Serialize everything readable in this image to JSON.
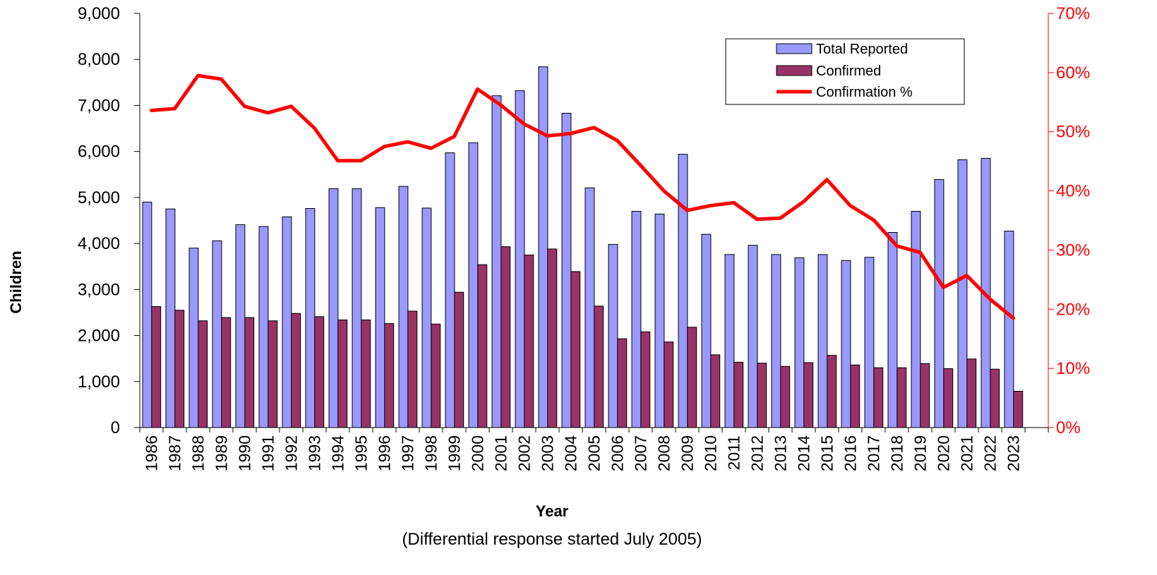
{
  "chart_data": {
    "type": "bar",
    "categories": [
      "1986",
      "1987",
      "1988",
      "1989",
      "1990",
      "1991",
      "1992",
      "1993",
      "1994",
      "1995",
      "1996",
      "1997",
      "1998",
      "1999",
      "2000",
      "2001",
      "2002",
      "2003",
      "2004",
      "2005",
      "2006",
      "2007",
      "2008",
      "2009",
      "2010",
      "2011",
      "2012",
      "2013",
      "2014",
      "2015",
      "2016",
      "2017",
      "2018",
      "2019",
      "2020",
      "2021",
      "2022",
      "2023"
    ],
    "series": [
      {
        "name": "Total Reported",
        "type": "bar",
        "axis": "left",
        "color": "#9999ff",
        "values": [
          4900,
          4750,
          3900,
          4060,
          4410,
          4370,
          4580,
          4760,
          5190,
          5190,
          4780,
          5240,
          4770,
          5970,
          6190,
          7210,
          7320,
          7840,
          6830,
          5210,
          3980,
          4700,
          4640,
          5940,
          4200,
          3760,
          3960,
          3760,
          3690,
          3760,
          3630,
          3700,
          4240,
          4700,
          5390,
          5820,
          5850,
          4270
        ]
      },
      {
        "name": "Confirmed",
        "type": "bar",
        "axis": "left",
        "color": "#993366",
        "values": [
          2630,
          2550,
          2320,
          2390,
          2390,
          2320,
          2480,
          2410,
          2340,
          2340,
          2260,
          2530,
          2250,
          2940,
          3540,
          3930,
          3750,
          3880,
          3390,
          2640,
          1930,
          2080,
          1860,
          2180,
          1580,
          1420,
          1400,
          1330,
          1410,
          1570,
          1360,
          1300,
          1300,
          1390,
          1280,
          1490,
          1270,
          790
        ]
      },
      {
        "name": "Confirmation %",
        "type": "line",
        "axis": "right",
        "color": "#ff0000",
        "values": [
          53.6,
          53.9,
          59.5,
          58.9,
          54.3,
          53.2,
          54.3,
          50.6,
          45.1,
          45.1,
          47.5,
          48.3,
          47.2,
          49.2,
          57.2,
          54.5,
          51.3,
          49.3,
          49.7,
          50.7,
          48.5,
          44.3,
          40.0,
          36.7,
          37.5,
          38.0,
          35.2,
          35.4,
          38.2,
          41.9,
          37.5,
          35.1,
          30.7,
          29.6,
          23.7,
          25.7,
          21.7,
          18.5
        ]
      }
    ],
    "ylim": [
      0,
      9000
    ],
    "y_ticks": [
      "0",
      "1,000",
      "2,000",
      "3,000",
      "4,000",
      "5,000",
      "6,000",
      "7,000",
      "8,000",
      "9,000"
    ],
    "y2lim": [
      0,
      70
    ],
    "y2_ticks": [
      "0%",
      "10%",
      "20%",
      "30%",
      "40%",
      "50%",
      "60%",
      "70%"
    ],
    "ylabel": "Children",
    "xlabel": "Year",
    "subtitle": "(Differential response started July 2005)",
    "legend_position": "top-right",
    "grid": false,
    "x_slots": 39
  }
}
